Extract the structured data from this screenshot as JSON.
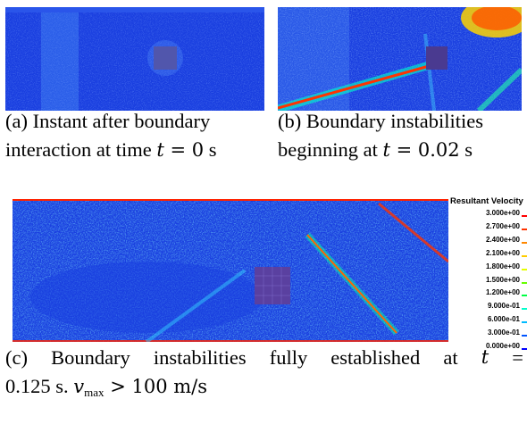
{
  "captions": {
    "a_line1": "(a) Instant after boundary",
    "a_line2_prefix": "interaction at time ",
    "a_var": "t",
    "a_eq": " = 0",
    "a_unit": " s",
    "b_line1": "(b) Boundary instabilities",
    "b_line2_prefix": "beginning at ",
    "b_var": "t",
    "b_eq": " = 0.02",
    "b_unit": " s",
    "c_words": [
      "(c)",
      "Boundary",
      "instabilities",
      "fully",
      "established",
      "at",
      "t",
      "="
    ],
    "c_line2_value": "0.125 s. ",
    "c_vmax_var": "v",
    "c_vmax_sub": "max",
    "c_vmax_rel": " > 100 m/s"
  },
  "legend": {
    "title": "Resultant Velocity",
    "entries": [
      {
        "label": "3.000e+00",
        "color": "#ff0000"
      },
      {
        "label": "2.700e+00",
        "color": "#ff3300"
      },
      {
        "label": "2.400e+00",
        "color": "#ff8800"
      },
      {
        "label": "2.100e+00",
        "color": "#ffcc00"
      },
      {
        "label": "1.800e+00",
        "color": "#e6ff00"
      },
      {
        "label": "1.500e+00",
        "color": "#66ff00"
      },
      {
        "label": "1.200e+00",
        "color": "#00ff44"
      },
      {
        "label": "9.000e-01",
        "color": "#00ffcc"
      },
      {
        "label": "6.000e-01",
        "color": "#00bbff"
      },
      {
        "label": "3.000e-01",
        "color": "#0055ff"
      },
      {
        "label": "0.000e+00",
        "color": "#0000ff"
      }
    ]
  },
  "colors": {
    "field_blue": "#1a3fe0",
    "field_light": "#3f7ef5",
    "mesh": "#5a40a0"
  }
}
